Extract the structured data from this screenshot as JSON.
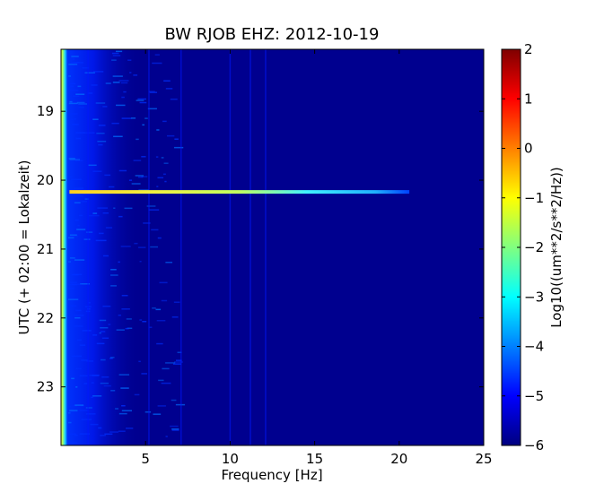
{
  "chart_data": {
    "type": "heatmap",
    "title": "BW RJOB EHZ: 2012-10-19",
    "xlabel": "Frequency [Hz]",
    "ylabel": "UTC (+ 02:00 = Lokalzeit)",
    "xlim": [
      0,
      25
    ],
    "ylim": [
      23.85,
      18.1
    ],
    "y_inverted": true,
    "xticks": [
      5,
      10,
      15,
      20,
      25
    ],
    "yticks": [
      19,
      20,
      21,
      22,
      23
    ],
    "colormap": "jet",
    "grid": false,
    "colorbar": {
      "label": "Log10((um**2/s**2/Hz))",
      "range": [
        -6,
        2
      ],
      "ticks": [
        -6,
        -5,
        -4,
        -3,
        -2,
        -1,
        0,
        1,
        2
      ]
    },
    "features": [
      {
        "kind": "low-frequency-band",
        "freq_range_hz": [
          0.0,
          0.35
        ],
        "level": -1.5
      },
      {
        "kind": "noise-band",
        "freq_range_hz": [
          0.35,
          2.5
        ],
        "level": -4.8
      },
      {
        "kind": "event-line",
        "time_utc": 20.17,
        "freq_range_hz": [
          0.5,
          20.6
        ],
        "peak_level": -0.7
      },
      {
        "kind": "vertical-lines",
        "freq_hz": [
          1.6,
          5.2,
          7.1,
          10.0,
          11.2,
          12.1
        ],
        "level": -5.2
      }
    ],
    "background_level": -5.9
  },
  "colors": {
    "background": "#00008f",
    "jet_stops": [
      "#00007f",
      "#0000ff",
      "#0080ff",
      "#00ffff",
      "#80ff80",
      "#ffff00",
      "#ff8000",
      "#ff0000",
      "#7f0000"
    ]
  }
}
